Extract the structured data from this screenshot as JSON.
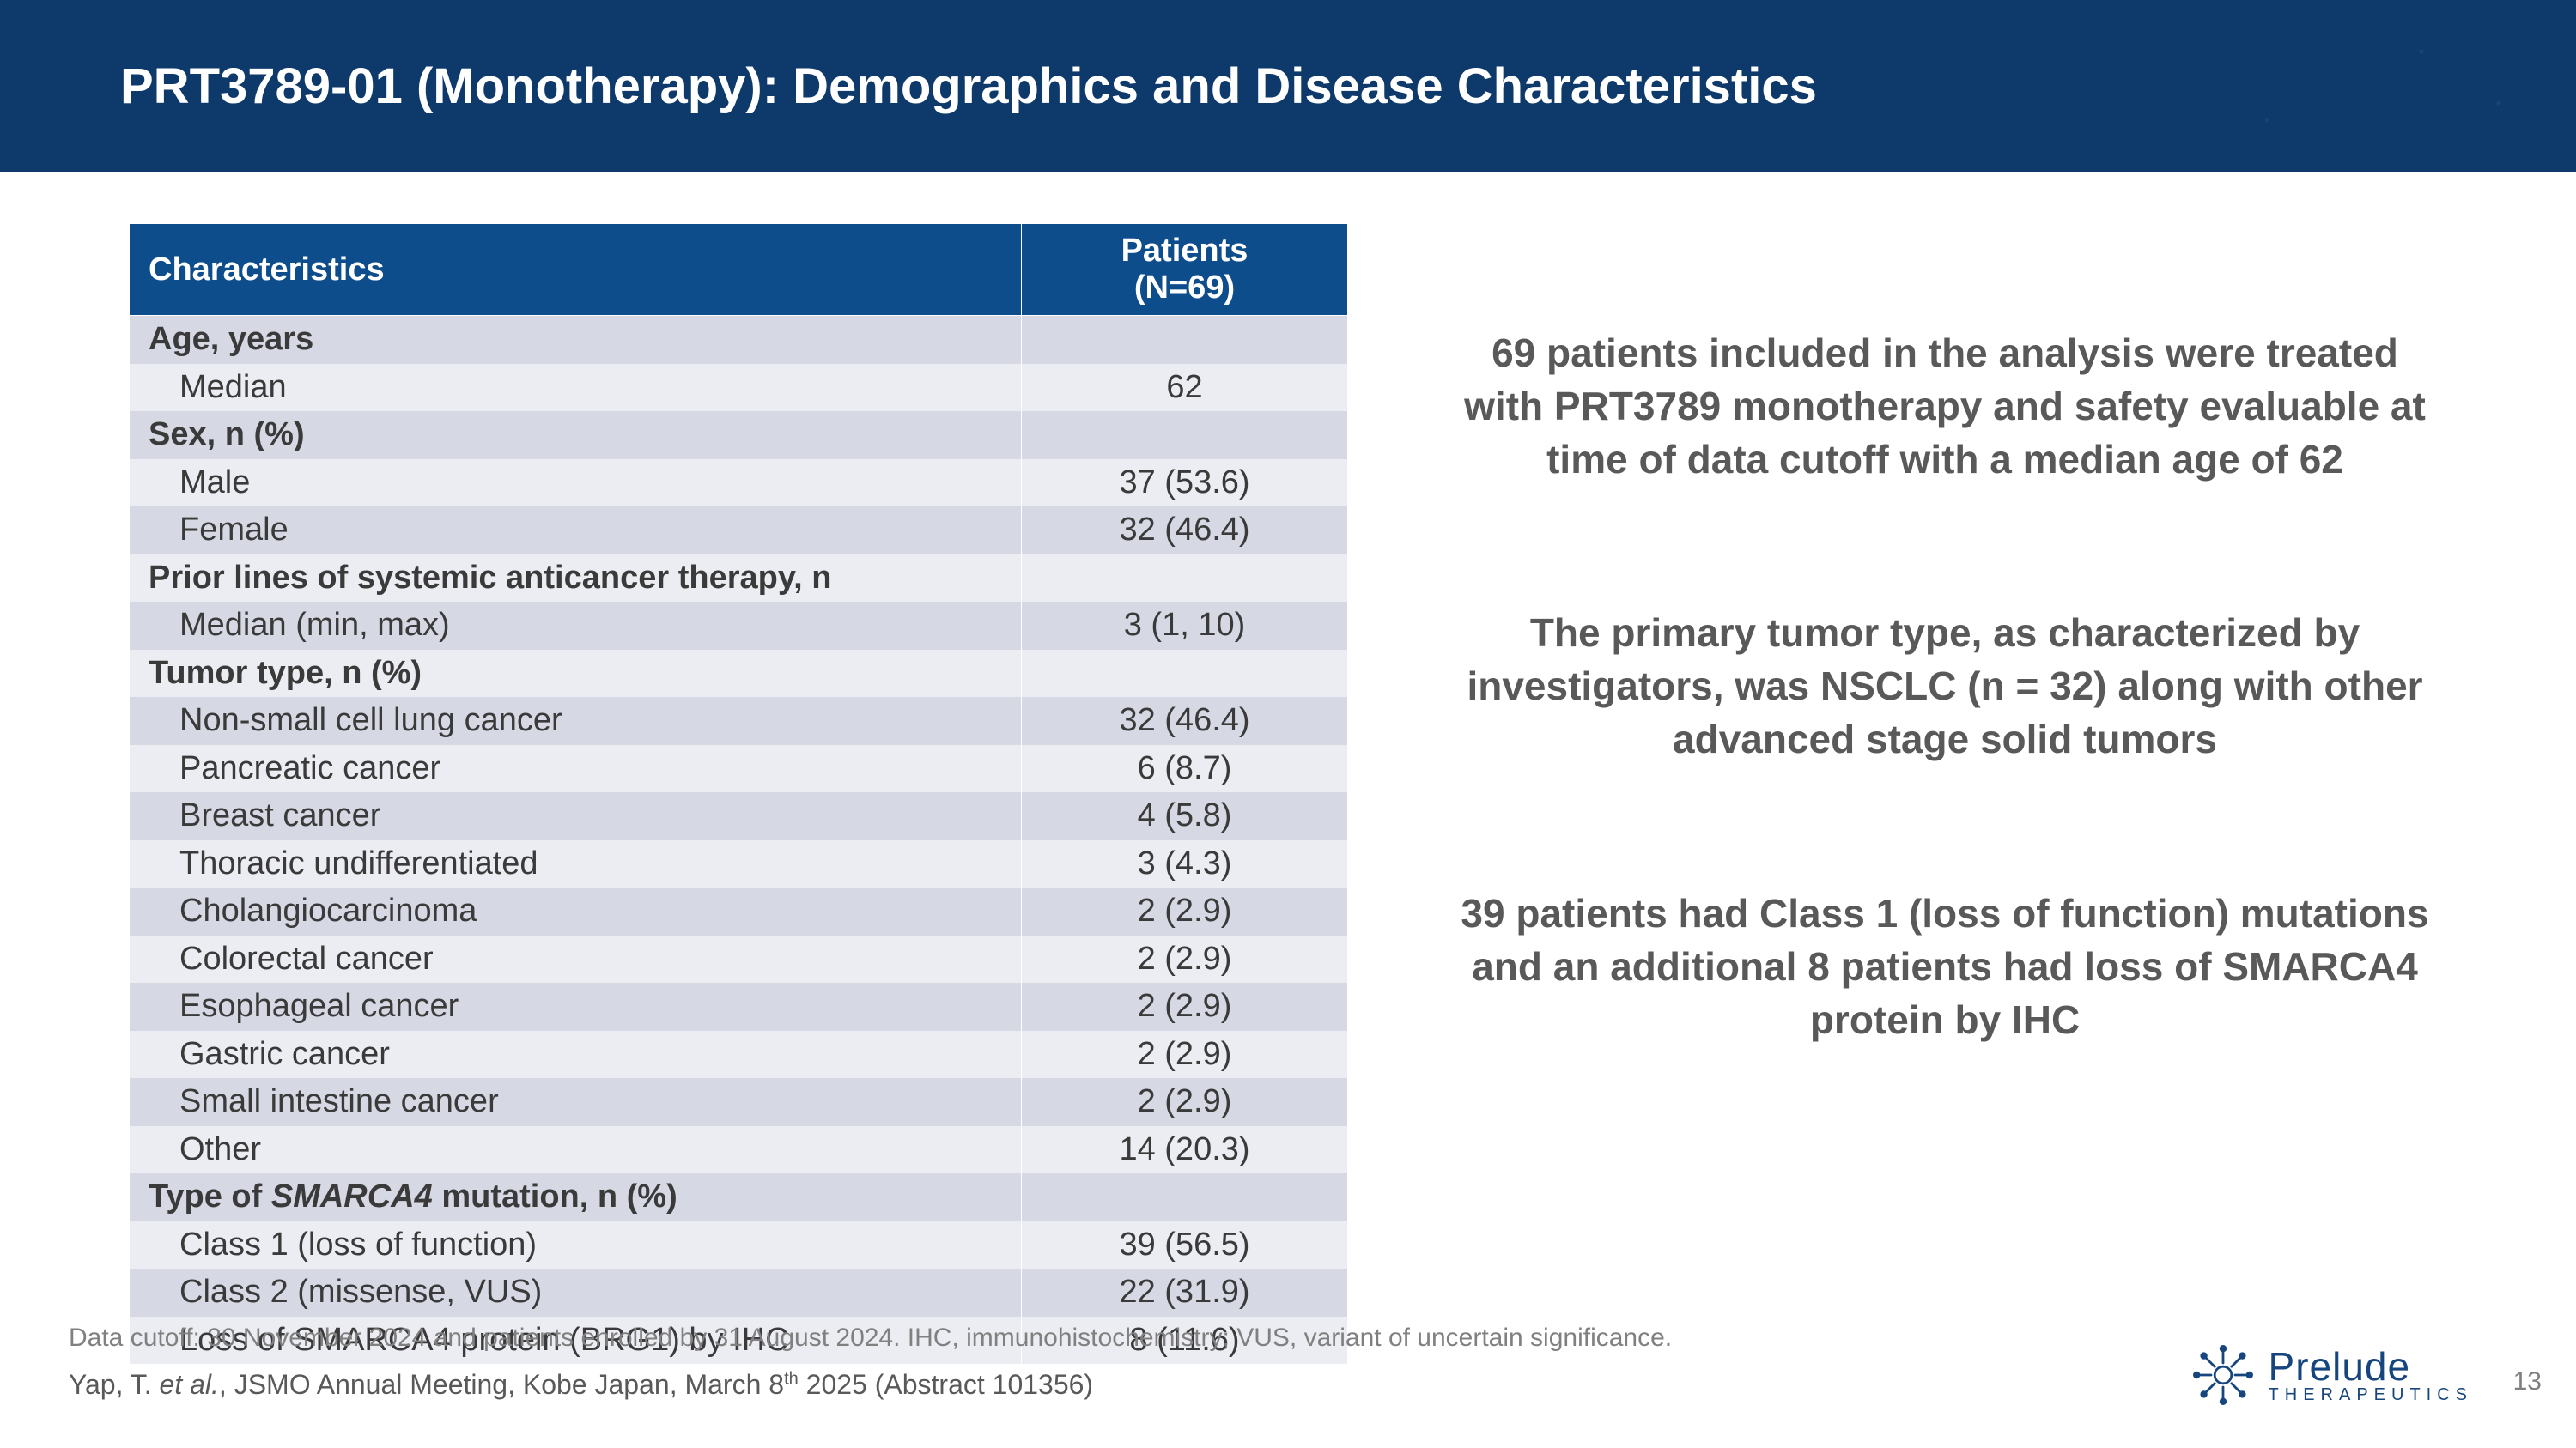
{
  "title": "PRT3789-01 (Monotherapy): Demographics and Disease Characteristics",
  "table": {
    "header": {
      "col1": "Characteristics",
      "col2": "Patients\n(N=69)"
    },
    "rows": [
      {
        "type": "section",
        "label": "Age, years",
        "value": "",
        "alt": 0
      },
      {
        "type": "sub",
        "label": "Median",
        "value": "62",
        "alt": 1
      },
      {
        "type": "section",
        "label": "Sex, n (%)",
        "value": "",
        "alt": 0
      },
      {
        "type": "sub",
        "label": "Male",
        "value": "37 (53.6)",
        "alt": 1
      },
      {
        "type": "sub",
        "label": "Female",
        "value": "32 (46.4)",
        "alt": 0
      },
      {
        "type": "section",
        "label": "Prior lines of systemic anticancer therapy, n",
        "value": "",
        "alt": 1
      },
      {
        "type": "sub",
        "label": "Median (min, max)",
        "value": "3 (1, 10)",
        "alt": 0
      },
      {
        "type": "section",
        "label": "Tumor type, n (%)",
        "value": "",
        "alt": 1
      },
      {
        "type": "sub",
        "label": "Non-small cell lung cancer",
        "value": "32 (46.4)",
        "alt": 0
      },
      {
        "type": "sub",
        "label": "Pancreatic cancer",
        "value": "6 (8.7)",
        "alt": 1
      },
      {
        "type": "sub",
        "label": "Breast cancer",
        "value": "4 (5.8)",
        "alt": 0
      },
      {
        "type": "sub",
        "label": "Thoracic undifferentiated",
        "value": "3 (4.3)",
        "alt": 1
      },
      {
        "type": "sub",
        "label": "Cholangiocarcinoma",
        "value": "2 (2.9)",
        "alt": 0
      },
      {
        "type": "sub",
        "label": "Colorectal cancer",
        "value": "2 (2.9)",
        "alt": 1
      },
      {
        "type": "sub",
        "label": "Esophageal cancer",
        "value": "2 (2.9)",
        "alt": 0
      },
      {
        "type": "sub",
        "label": "Gastric cancer",
        "value": "2 (2.9)",
        "alt": 1
      },
      {
        "type": "sub",
        "label": "Small intestine cancer",
        "value": "2 (2.9)",
        "alt": 0
      },
      {
        "type": "sub",
        "label": "Other",
        "value": "14 (20.3)",
        "alt": 1
      },
      {
        "type": "section",
        "label_pre": "Type of ",
        "label_italic": "SMARCA4",
        "label_post": " mutation, n (%)",
        "value": "",
        "alt": 0
      },
      {
        "type": "sub",
        "label": "Class 1 (loss of function)",
        "value": "39 (56.5)",
        "alt": 1
      },
      {
        "type": "sub",
        "label": "Class 2 (missense, VUS)",
        "value": "22 (31.9)",
        "alt": 0
      },
      {
        "type": "sub",
        "label": "Loss of SMARCA4 protein (BRG1) by IHC",
        "value": "8 (11.6)",
        "alt": 1
      }
    ]
  },
  "summary": {
    "p1": "69 patients included in the analysis were treated with PRT3789 monotherapy and safety evaluable at time of data cutoff with a median age of 62",
    "p2": "The primary tumor type, as characterized by investigators, was NSCLC (n = 32) along with other advanced stage solid tumors",
    "p3": "39 patients had Class 1 (loss of function) mutations and an additional 8 patients had loss of SMARCA4 protein by IHC"
  },
  "footer": {
    "note": "Data cutoff: 30 November 2024 and patients enrolled by 31 August 2024.  IHC, immunohistochemistry; VUS, variant of uncertain significance.",
    "cite_pre": "Yap, T. ",
    "cite_etal": "et al.",
    "cite_post": ", JSMO Annual Meeting, Kobe Japan, March 8",
    "cite_sup": "th",
    "cite_end": " 2025 (Abstract 101356)"
  },
  "logo": {
    "name": "Prelude",
    "sub": "THERAPEUTICS"
  },
  "page": "13",
  "colors": {
    "header_bg": "#0e3a6b",
    "th_bg": "#0e4d8c",
    "row_a": "#d6d8e4",
    "row_b": "#ecedf3",
    "text_dark": "#3a3a3a",
    "text_gray": "#595959",
    "text_light": "#808080"
  }
}
